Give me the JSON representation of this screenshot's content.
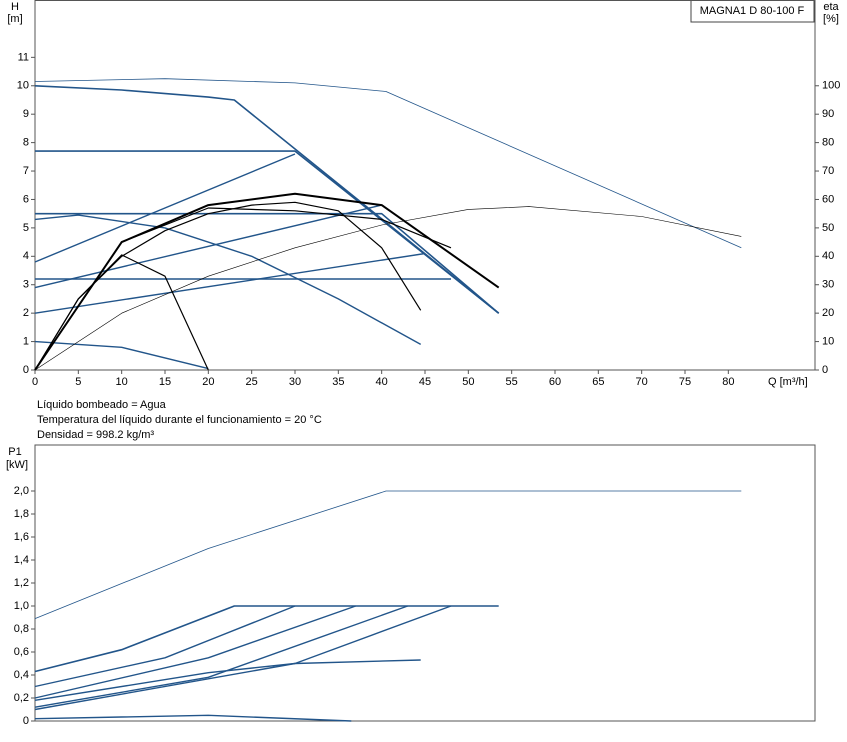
{
  "chart_data": [
    {
      "type": "line",
      "ylabel": "H",
      "yunit": "[m]",
      "y2label": "eta",
      "y2unit": "[%]",
      "xlabel": "Q [m³/h]",
      "annotation": "MAGNA1 D 80-100 F",
      "notes": [
        "Líquido bombeado = Agua",
        "Temperatura del líquido durante el funcionamiento = 20 °C",
        "Densidad = 998.2 kg/m³"
      ],
      "xlim": [
        0,
        90
      ],
      "xticks": [
        0,
        5,
        10,
        15,
        20,
        25,
        30,
        35,
        40,
        45,
        50,
        55,
        60,
        65,
        70,
        75,
        80
      ],
      "ylim": [
        0,
        13
      ],
      "yticks": [
        0,
        1,
        2,
        3,
        4,
        5,
        6,
        7,
        8,
        9,
        10,
        11
      ],
      "y2lim": [
        0,
        130
      ],
      "y2ticks": [
        0,
        10,
        20,
        30,
        40,
        50,
        60,
        70,
        80,
        90,
        100
      ],
      "grid": false,
      "series": [
        {
          "color": "#22558a",
          "linewidth": 1.6,
          "x": [
            0,
            10,
            20,
            23,
            53.5
          ],
          "values": [
            10,
            9.85,
            9.6,
            9.5,
            2.0
          ]
        },
        {
          "color": "#22558a",
          "linewidth": 1.6,
          "x": [
            0,
            30,
            53.5
          ],
          "values": [
            7.7,
            7.7,
            2.0
          ]
        },
        {
          "color": "#22558a",
          "linewidth": 1.6,
          "x": [
            0,
            40,
            53.5
          ],
          "values": [
            5.5,
            5.5,
            2.0
          ]
        },
        {
          "color": "#22558a",
          "linewidth": 1.6,
          "x": [
            0,
            48
          ],
          "values": [
            3.2,
            3.2
          ]
        },
        {
          "color": "#22558a",
          "linewidth": 1.4,
          "x": [
            0,
            30
          ],
          "values": [
            3.8,
            7.6
          ]
        },
        {
          "color": "#22558a",
          "linewidth": 1.4,
          "x": [
            0,
            40
          ],
          "values": [
            2.9,
            5.8
          ]
        },
        {
          "color": "#22558a",
          "linewidth": 1.4,
          "x": [
            0,
            45
          ],
          "values": [
            2.0,
            4.1
          ]
        },
        {
          "color": "#22558a",
          "linewidth": 1.4,
          "x": [
            0,
            5,
            15,
            25,
            35,
            44.5
          ],
          "values": [
            5.3,
            5.45,
            5.0,
            4.0,
            2.5,
            0.9
          ]
        },
        {
          "color": "#22558a",
          "linewidth": 1.4,
          "x": [
            0,
            10,
            20
          ],
          "values": [
            1.0,
            0.8,
            0.05
          ]
        },
        {
          "color": "#000000",
          "linewidth": 1.2,
          "x": [
            0,
            5,
            10,
            15,
            20
          ],
          "values": [
            0,
            2.5,
            4.05,
            3.3,
            0
          ]
        },
        {
          "color": "#000000",
          "linewidth": 1.2,
          "x": [
            0,
            5,
            10,
            15,
            20,
            25,
            30,
            35,
            40,
            44.5
          ],
          "values": [
            0,
            2.5,
            4.0,
            4.9,
            5.5,
            5.8,
            5.9,
            5.6,
            4.3,
            2.1
          ]
        },
        {
          "color": "#000000",
          "linewidth": 1.2,
          "x": [
            0,
            10,
            20,
            30,
            40,
            48
          ],
          "values": [
            0,
            4.5,
            5.7,
            5.6,
            5.3,
            4.3
          ]
        },
        {
          "color": "#000000",
          "linewidth": 2.0,
          "x": [
            0,
            10,
            20,
            30,
            40,
            47,
            53.5
          ],
          "values": [
            0,
            4.5,
            5.8,
            6.2,
            5.8,
            4.3,
            2.9
          ]
        },
        {
          "color": "#22558a",
          "linewidth": 0.8,
          "axis": "y2",
          "x": [
            0,
            15,
            30,
            40.5,
            81.5
          ],
          "values": [
            101.5,
            102.5,
            101,
            98,
            43
          ]
        },
        {
          "color": "#000000",
          "linewidth": 0.6,
          "axis": "y2",
          "x": [
            0,
            10,
            20,
            30,
            40,
            50,
            57,
            70,
            81.5
          ],
          "values": [
            0,
            20,
            33,
            43,
            51,
            56.5,
            57.5,
            54,
            47
          ]
        }
      ]
    },
    {
      "type": "line",
      "ylabel": "P1",
      "yunit": "[kW]",
      "xlim": [
        0,
        90
      ],
      "ylim": [
        0,
        2.4
      ],
      "yticks": [
        0,
        {
          "value": 0.2,
          "label": "0,2"
        },
        {
          "value": 0.4,
          "label": "0,4"
        },
        {
          "value": 0.6,
          "label": "0,6"
        },
        {
          "value": 0.8,
          "label": "0,8"
        },
        {
          "value": 1.0,
          "label": "1,0"
        },
        {
          "value": 1.2,
          "label": "1,2"
        },
        {
          "value": 1.4,
          "label": "1,4"
        },
        {
          "value": 1.6,
          "label": "1,6"
        },
        {
          "value": 1.8,
          "label": "1,8"
        },
        {
          "value": 2.0,
          "label": "2,0"
        }
      ],
      "grid": false,
      "series": [
        {
          "color": "#22558a",
          "linewidth": 0.8,
          "x": [
            0,
            20,
            40.5,
            81.5
          ],
          "values": [
            0.89,
            1.5,
            2.0,
            2.0
          ]
        },
        {
          "color": "#22558a",
          "linewidth": 1.6,
          "x": [
            0,
            10,
            23,
            53.5
          ],
          "values": [
            0.43,
            0.62,
            1.0,
            1.0
          ]
        },
        {
          "color": "#22558a",
          "linewidth": 1.4,
          "x": [
            0,
            15,
            30
          ],
          "values": [
            0.3,
            0.55,
            1.0
          ]
        },
        {
          "color": "#22558a",
          "linewidth": 1.4,
          "x": [
            0,
            20,
            37
          ],
          "values": [
            0.2,
            0.55,
            1.0
          ]
        },
        {
          "color": "#22558a",
          "linewidth": 1.4,
          "x": [
            0,
            20,
            43
          ],
          "values": [
            0.12,
            0.38,
            1.0
          ]
        },
        {
          "color": "#22558a",
          "linewidth": 1.4,
          "x": [
            0,
            30,
            48
          ],
          "values": [
            0.1,
            0.5,
            1.0
          ]
        },
        {
          "color": "#22558a",
          "linewidth": 1.4,
          "x": [
            0,
            20,
            30,
            44.5
          ],
          "values": [
            0.18,
            0.42,
            0.5,
            0.53
          ]
        },
        {
          "color": "#22558a",
          "linewidth": 1.4,
          "x": [
            0,
            20,
            36.5
          ],
          "values": [
            0.02,
            0.05,
            0
          ]
        }
      ]
    }
  ]
}
